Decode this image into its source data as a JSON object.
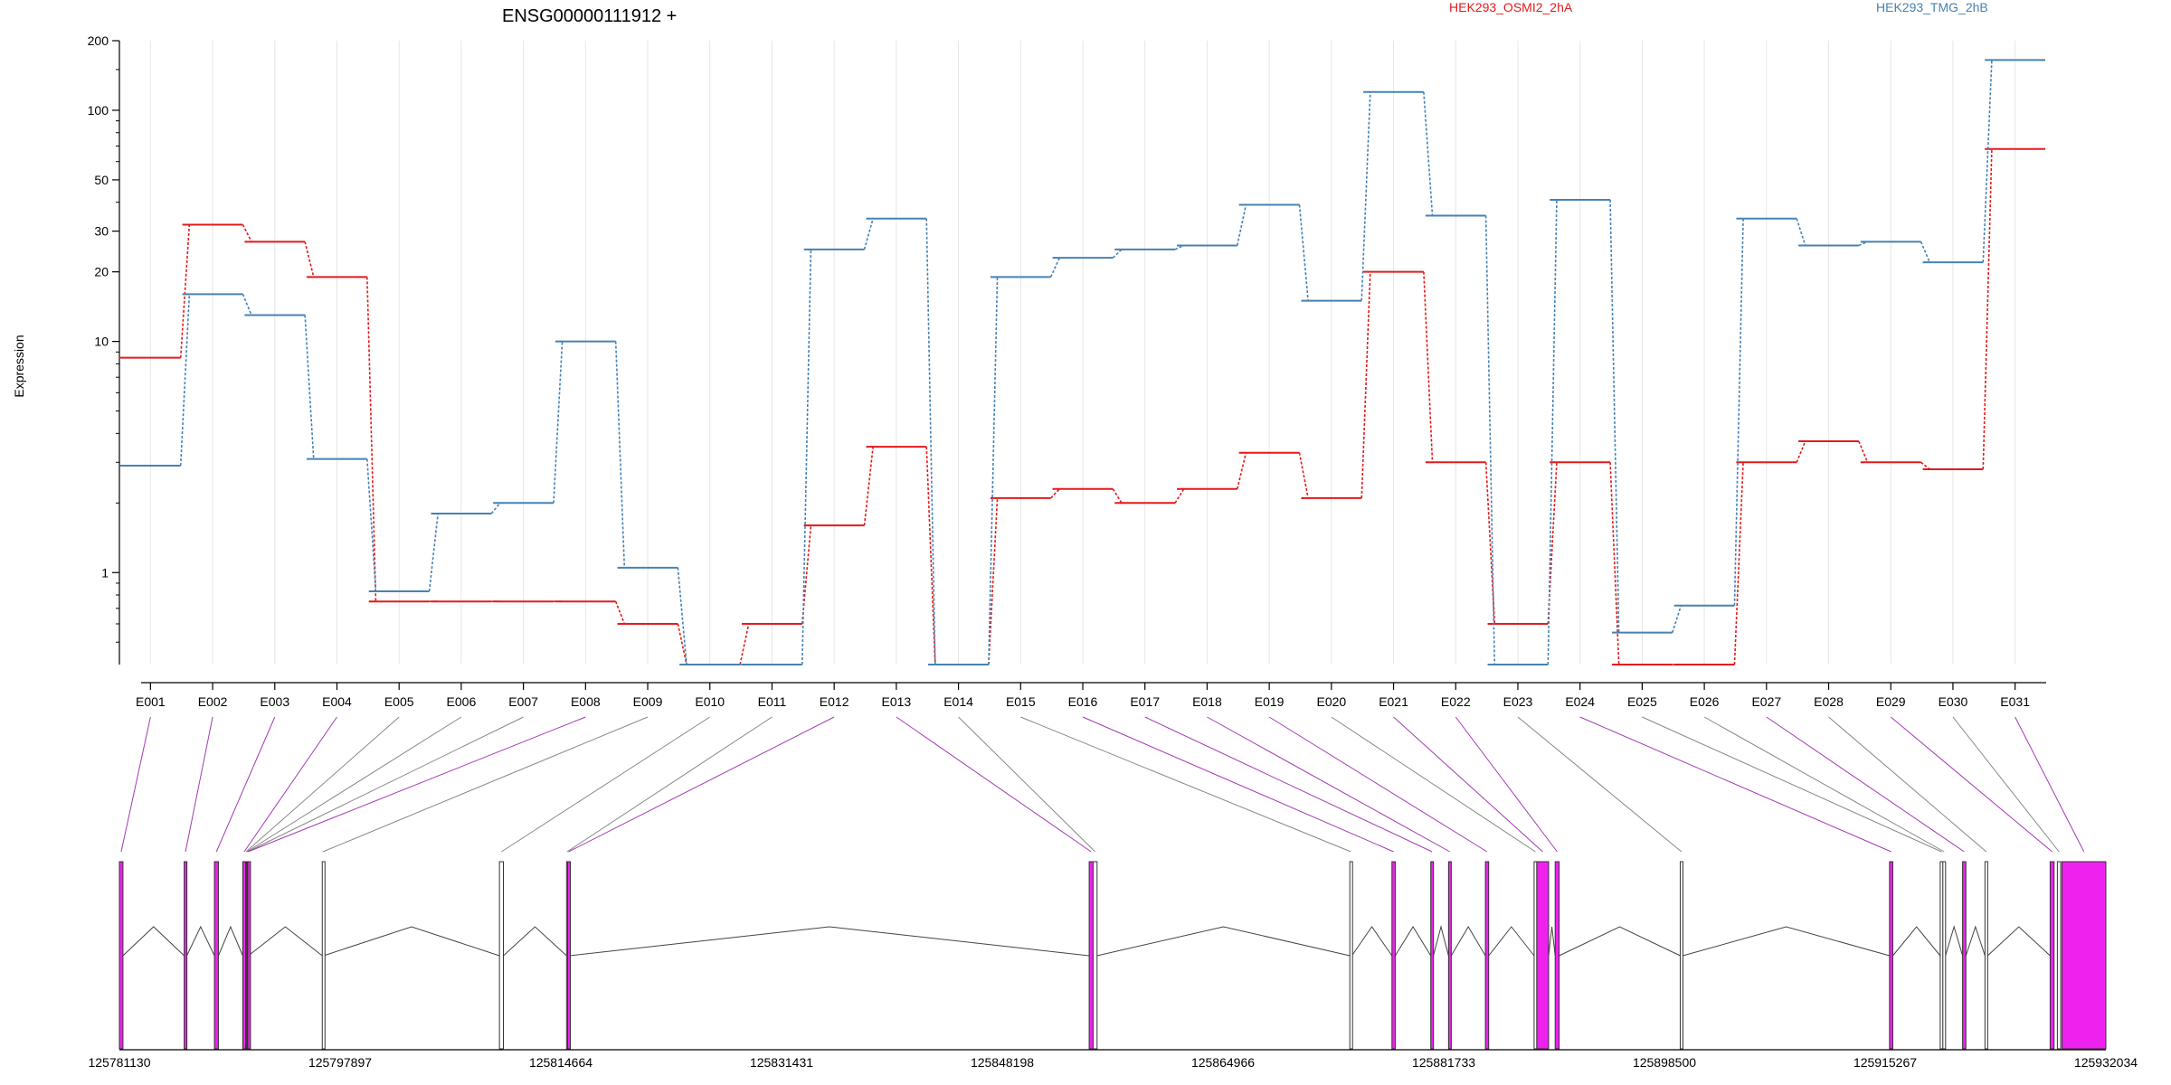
{
  "chart_data": {
    "type": "line",
    "title": "ENSG00000111912 +",
    "ylabel": "Expression",
    "xlabel": "",
    "y_scale": "log",
    "ylim": [
      0.4,
      200
    ],
    "y_ticks": [
      1,
      10,
      20,
      30,
      50,
      100,
      200
    ],
    "y_tick_labels": [
      "1",
      "10",
      "20",
      "30",
      "50",
      "100",
      "200"
    ],
    "grid": "vertical",
    "legend_position": "top",
    "categories": [
      "E001",
      "E002",
      "E003",
      "E004",
      "E005",
      "E006",
      "E007",
      "E008",
      "E009",
      "E010",
      "E011",
      "E012",
      "E013",
      "E014",
      "E015",
      "E016",
      "E017",
      "E018",
      "E019",
      "E020",
      "E021",
      "E022",
      "E023",
      "E024",
      "E025",
      "E026",
      "E027",
      "E028",
      "E029",
      "E030",
      "E031"
    ],
    "series": [
      {
        "name": "HEK293_OSMI2_2hA",
        "color": "#e31a1c",
        "values": [
          8.5,
          32,
          27,
          19,
          0.75,
          0.75,
          0.75,
          0.75,
          0.6,
          0.4,
          0.6,
          1.6,
          3.5,
          0.4,
          2.1,
          2.3,
          2.0,
          2.3,
          3.3,
          2.1,
          20,
          3.0,
          0.6,
          3.0,
          0.4,
          0.4,
          3.0,
          3.7,
          3.0,
          2.8,
          68
        ]
      },
      {
        "name": "HEK293_TMG_2hB",
        "color": "#4682b4",
        "values": [
          2.9,
          16,
          13,
          3.1,
          0.83,
          1.8,
          2.0,
          10,
          1.05,
          0.4,
          0.4,
          25,
          34,
          0.4,
          19,
          23,
          25,
          26,
          39,
          15,
          120,
          35,
          0.4,
          41,
          0.55,
          0.72,
          34,
          26,
          27,
          22,
          165
        ]
      }
    ],
    "genomic_axis": {
      "tick_labels": [
        "125781130",
        "125797897",
        "125814664",
        "125831431",
        "125848198",
        "125864966",
        "125881733",
        "125898500",
        "125915267",
        "125932034"
      ],
      "tick_values": [
        125781130,
        125797897,
        125814664,
        125831431,
        125848198,
        125864966,
        125881733,
        125898500,
        125915267,
        125932034
      ],
      "range": [
        125781130,
        125932034
      ]
    },
    "exons": [
      {
        "id": "E001",
        "start": 125781130,
        "end": 125781400,
        "color": "#ee22ee"
      },
      {
        "id": "E002",
        "start": 125786050,
        "end": 125786250,
        "color": "#ee22ee"
      },
      {
        "id": "E003",
        "start": 125788350,
        "end": 125788650,
        "color": "#ee22ee"
      },
      {
        "id": "E004",
        "start": 125790500,
        "end": 125790720,
        "color": "#ee22ee"
      },
      {
        "id": "E005",
        "start": 125790720,
        "end": 125790780,
        "color": "#ffffff"
      },
      {
        "id": "E006",
        "start": 125790780,
        "end": 125790830,
        "color": "#ffffff"
      },
      {
        "id": "E007",
        "start": 125790830,
        "end": 125790880,
        "color": "#ffffff"
      },
      {
        "id": "E008",
        "start": 125790880,
        "end": 125790930,
        "color": "#ee22ee"
      },
      {
        "id": "E009",
        "start": 125796540,
        "end": 125796640,
        "color": "#ffffff"
      },
      {
        "id": "E010",
        "start": 125810000,
        "end": 125810300,
        "color": "#ffffff"
      },
      {
        "id": "E011",
        "start": 125815100,
        "end": 125815180,
        "color": "#ffffff"
      },
      {
        "id": "E012",
        "start": 125815180,
        "end": 125815330,
        "color": "#ee22ee"
      },
      {
        "id": "E013",
        "start": 125854800,
        "end": 125855100,
        "color": "#ee22ee"
      },
      {
        "id": "E014",
        "start": 125855100,
        "end": 125855400,
        "color": "#ffffff"
      },
      {
        "id": "E015",
        "start": 125874600,
        "end": 125874750,
        "color": "#ffffff"
      },
      {
        "id": "E016",
        "start": 125877800,
        "end": 125878050,
        "color": "#ee22ee"
      },
      {
        "id": "E017",
        "start": 125880750,
        "end": 125880950,
        "color": "#ee22ee"
      },
      {
        "id": "E018",
        "start": 125882100,
        "end": 125882300,
        "color": "#ee22ee"
      },
      {
        "id": "E019",
        "start": 125884900,
        "end": 125885150,
        "color": "#ee22ee"
      },
      {
        "id": "E020",
        "start": 125888600,
        "end": 125888800,
        "color": "#ffffff"
      },
      {
        "id": "E021",
        "start": 125888800,
        "end": 125889700,
        "color": "#ee22ee"
      },
      {
        "id": "E022",
        "start": 125890200,
        "end": 125890500,
        "color": "#ee22ee"
      },
      {
        "id": "E023",
        "start": 125899700,
        "end": 125899900,
        "color": "#ffffff"
      },
      {
        "id": "E024",
        "start": 125915600,
        "end": 125915850,
        "color": "#ee22ee"
      },
      {
        "id": "E025",
        "start": 125919450,
        "end": 125919650,
        "color": "#ffffff"
      },
      {
        "id": "E026",
        "start": 125919650,
        "end": 125919850,
        "color": "#ffffff"
      },
      {
        "id": "E027",
        "start": 125921150,
        "end": 125921400,
        "color": "#ee22ee"
      },
      {
        "id": "E028",
        "start": 125922850,
        "end": 125923050,
        "color": "#ffffff"
      },
      {
        "id": "E029",
        "start": 125927800,
        "end": 125928100,
        "color": "#ee22ee"
      },
      {
        "id": "E030",
        "start": 125928350,
        "end": 125928600,
        "color": "#ffffff"
      },
      {
        "id": "E031",
        "start": 125928700,
        "end": 125932034,
        "color": "#ee22ee"
      }
    ]
  }
}
